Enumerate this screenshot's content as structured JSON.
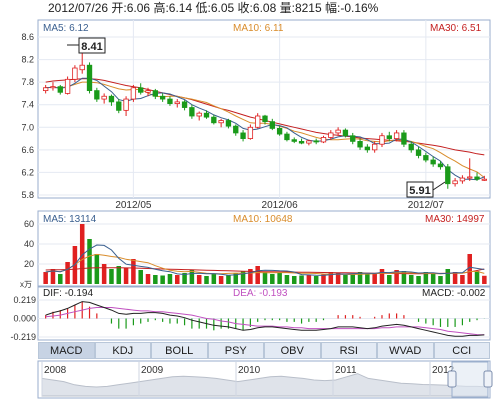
{
  "quote": {
    "date": "2012/07/26",
    "open_label": "开:",
    "open": "6.06",
    "high_label": "高:",
    "high": "6.14",
    "low_label": "低:",
    "low": "6.05",
    "close_label": "收:",
    "close": "6.08",
    "volume_label": "量:",
    "volume": "8215",
    "change_label": "幅:",
    "change": "-0.16%"
  },
  "price_panel": {
    "ma5_label": "MA5: 6.12",
    "ma10_label": "MA10: 6.11",
    "ma30_label": "MA30: 6.51",
    "max_label": "8.41",
    "min_label": "5.91"
  },
  "volume_panel": {
    "ma5_label": "MA5: 13114",
    "ma10_label": "MA10: 10648",
    "ma30_label": "MA30: 14997",
    "unit_label": "x万"
  },
  "macd_panel": {
    "dif_label": "DIF: -0.194",
    "dea_label": "DEA: -0.193",
    "macd_label": "MACD: -0.002"
  },
  "tabs": [
    "MACD",
    "KDJ",
    "BOLL",
    "PSY",
    "OBV",
    "RSI",
    "WVAD",
    "CCI"
  ],
  "active_tab": "MACD",
  "colors": {
    "up": "#e02020",
    "down": "#1a9a1a",
    "ma5": "#3a5f8f",
    "ma10": "#d98c2b",
    "ma30": "#c41f1f",
    "dif": "#222222",
    "dea": "#c050c0"
  },
  "chart_data": [
    {
      "type": "candlestick",
      "title": "",
      "ylim": [
        5.8,
        8.6
      ],
      "yticks": [
        "8.6",
        "8.2",
        "7.8",
        "7.4",
        "7.0",
        "6.6",
        "6.2",
        "5.8"
      ],
      "xticks": [
        "2012/05",
        "2012/06",
        "2012/07"
      ],
      "annotations": [
        "8.41",
        "5.91"
      ],
      "ohlc": [
        [
          7.65,
          7.75,
          7.6,
          7.7
        ],
        [
          7.7,
          7.8,
          7.65,
          7.72
        ],
        [
          7.72,
          7.75,
          7.58,
          7.62
        ],
        [
          7.6,
          7.9,
          7.58,
          7.85
        ],
        [
          7.85,
          8.1,
          7.8,
          8.05
        ],
        [
          8.02,
          8.41,
          7.95,
          8.1
        ],
        [
          8.1,
          8.15,
          7.6,
          7.65
        ],
        [
          7.65,
          7.7,
          7.45,
          7.5
        ],
        [
          7.5,
          7.6,
          7.42,
          7.55
        ],
        [
          7.55,
          7.58,
          7.38,
          7.45
        ],
        [
          7.45,
          7.5,
          7.25,
          7.3
        ],
        [
          7.3,
          7.55,
          7.2,
          7.5
        ],
        [
          7.5,
          7.75,
          7.45,
          7.7
        ],
        [
          7.7,
          7.78,
          7.58,
          7.62
        ],
        [
          7.62,
          7.7,
          7.55,
          7.65
        ],
        [
          7.65,
          7.68,
          7.5,
          7.55
        ],
        [
          7.55,
          7.6,
          7.45,
          7.5
        ],
        [
          7.5,
          7.55,
          7.38,
          7.42
        ],
        [
          7.42,
          7.5,
          7.35,
          7.45
        ],
        [
          7.45,
          7.48,
          7.3,
          7.35
        ],
        [
          7.35,
          7.4,
          7.15,
          7.2
        ],
        [
          7.2,
          7.28,
          7.12,
          7.25
        ],
        [
          7.25,
          7.3,
          7.15,
          7.18
        ],
        [
          7.18,
          7.22,
          7.05,
          7.08
        ],
        [
          7.08,
          7.15,
          7.0,
          7.12
        ],
        [
          7.12,
          7.15,
          6.98,
          7.02
        ],
        [
          7.02,
          7.05,
          6.85,
          6.9
        ],
        [
          6.9,
          6.95,
          6.75,
          6.8
        ],
        [
          6.8,
          7.05,
          6.78,
          7.0
        ],
        [
          7.0,
          7.25,
          6.98,
          7.2
        ],
        [
          7.2,
          7.22,
          7.05,
          7.1
        ],
        [
          7.1,
          7.15,
          6.95,
          6.98
        ],
        [
          6.98,
          7.02,
          6.85,
          6.88
        ],
        [
          6.88,
          6.92,
          6.75,
          6.78
        ],
        [
          6.78,
          6.82,
          6.72,
          6.75
        ],
        [
          6.75,
          6.8,
          6.7,
          6.72
        ],
        [
          6.72,
          6.78,
          6.68,
          6.76
        ],
        [
          6.76,
          6.8,
          6.7,
          6.74
        ],
        [
          6.74,
          6.85,
          6.72,
          6.82
        ],
        [
          6.82,
          6.95,
          6.78,
          6.9
        ],
        [
          6.9,
          7.0,
          6.85,
          6.95
        ],
        [
          6.95,
          6.98,
          6.82,
          6.85
        ],
        [
          6.85,
          6.9,
          6.7,
          6.75
        ],
        [
          6.75,
          6.8,
          6.6,
          6.65
        ],
        [
          6.65,
          6.7,
          6.55,
          6.6
        ],
        [
          6.6,
          6.75,
          6.55,
          6.7
        ],
        [
          6.7,
          6.9,
          6.65,
          6.85
        ],
        [
          6.85,
          6.92,
          6.75,
          6.8
        ],
        [
          6.8,
          6.95,
          6.75,
          6.9
        ],
        [
          6.9,
          6.95,
          6.65,
          6.7
        ],
        [
          6.7,
          6.75,
          6.55,
          6.6
        ],
        [
          6.6,
          6.65,
          6.45,
          6.5
        ],
        [
          6.5,
          6.55,
          6.38,
          6.42
        ],
        [
          6.42,
          6.48,
          6.3,
          6.35
        ],
        [
          6.35,
          6.4,
          6.25,
          6.3
        ],
        [
          6.3,
          6.35,
          5.91,
          6.0
        ],
        [
          6.0,
          6.1,
          5.95,
          6.05
        ],
        [
          6.05,
          6.15,
          6.0,
          6.1
        ],
        [
          6.1,
          6.45,
          6.05,
          6.12
        ],
        [
          6.12,
          6.2,
          6.05,
          6.08
        ],
        [
          6.06,
          6.14,
          6.05,
          6.08
        ]
      ],
      "ma5": [
        7.7,
        7.71,
        7.69,
        7.71,
        7.78,
        7.87,
        7.87,
        7.83,
        7.73,
        7.63,
        7.49,
        7.46,
        7.5,
        7.51,
        7.56,
        7.6,
        7.61,
        7.59,
        7.54,
        7.49,
        7.4,
        7.34,
        7.29,
        7.22,
        7.17,
        7.13,
        7.07,
        6.98,
        6.95,
        6.97,
        7.01,
        7.05,
        7.03,
        6.99,
        6.9,
        6.82,
        6.77,
        6.75,
        6.76,
        6.79,
        6.83,
        6.85,
        6.84,
        6.83,
        6.78,
        6.71,
        6.71,
        6.72,
        6.79,
        6.79,
        6.74,
        6.66,
        6.57,
        6.48,
        6.4,
        6.25,
        6.15,
        6.08,
        6.08,
        6.07,
        6.12
      ],
      "ma10": [
        7.7,
        7.71,
        7.7,
        7.72,
        7.76,
        7.8,
        7.8,
        7.79,
        7.76,
        7.72,
        7.68,
        7.66,
        7.67,
        7.67,
        7.61,
        7.55,
        7.54,
        7.55,
        7.55,
        7.52,
        7.5,
        7.47,
        7.44,
        7.38,
        7.33,
        7.27,
        7.2,
        7.14,
        7.08,
        7.07,
        7.07,
        7.05,
        7.02,
        6.98,
        6.93,
        6.9,
        6.86,
        6.82,
        6.79,
        6.78,
        6.78,
        6.79,
        6.8,
        6.79,
        6.76,
        6.75,
        6.74,
        6.76,
        6.78,
        6.77,
        6.75,
        6.71,
        6.66,
        6.62,
        6.55,
        6.47,
        6.4,
        6.32,
        6.26,
        6.21,
        6.11
      ],
      "ma30": [
        7.8,
        7.82,
        7.83,
        7.84,
        7.85,
        7.86,
        7.86,
        7.85,
        7.83,
        7.8,
        7.77,
        7.74,
        7.72,
        7.7,
        7.67,
        7.64,
        7.61,
        7.58,
        7.55,
        7.52,
        7.49,
        7.45,
        7.41,
        7.37,
        7.33,
        7.3,
        7.26,
        7.22,
        7.18,
        7.15,
        7.12,
        7.09,
        7.06,
        7.03,
        7.0,
        6.97,
        6.94,
        6.91,
        6.89,
        6.87,
        6.86,
        6.84,
        6.83,
        6.81,
        6.8,
        6.79,
        6.78,
        6.77,
        6.76,
        6.75,
        6.74,
        6.72,
        6.7,
        6.68,
        6.66,
        6.63,
        6.6,
        6.58,
        6.56,
        6.53,
        6.51
      ]
    },
    {
      "type": "bar",
      "title": "",
      "ylim": [
        0,
        60000
      ],
      "yticks": [
        "60",
        "40",
        "20"
      ],
      "volume": [
        12000,
        15000,
        10000,
        22000,
        38000,
        60000,
        45000,
        30000,
        20000,
        15000,
        18000,
        16000,
        25000,
        14000,
        10000,
        9000,
        8500,
        10000,
        9000,
        11000,
        14000,
        9000,
        8000,
        10000,
        8000,
        9000,
        11000,
        13000,
        15000,
        18000,
        12000,
        10000,
        11000,
        9000,
        8000,
        8500,
        9000,
        8000,
        9500,
        12000,
        11000,
        9000,
        10000,
        12000,
        10000,
        11000,
        15000,
        9000,
        14000,
        13000,
        9000,
        8000,
        12000,
        10000,
        8000,
        15000,
        12000,
        9000,
        30000,
        13000,
        8215
      ],
      "ma5": [
        12000,
        13000,
        12333,
        14750,
        19400,
        29000,
        35000,
        39000,
        38600,
        34000,
        25600,
        19800,
        18800,
        17600,
        16600,
        14800,
        13300,
        12300,
        10100,
        9500,
        10500,
        10700,
        10200,
        10400,
        9800,
        8800,
        9200,
        10200,
        11200,
        13200,
        13800,
        13600,
        13200,
        13000,
        12000,
        9400,
        9100,
        8700,
        8600,
        9400,
        10000,
        9900,
        10300,
        10800,
        10800,
        10600,
        11600,
        11400,
        12200,
        12400,
        12000,
        11000,
        11200,
        11200,
        10400,
        10600,
        11400,
        11200,
        16800,
        15600,
        14500
      ],
      "ma10": [
        12000,
        13000,
        12333,
        14750,
        19400,
        24500,
        28000,
        29600,
        28800,
        27500,
        26600,
        24700,
        23600,
        22400,
        21300,
        18300,
        15800,
        13800,
        12800,
        12200,
        12600,
        11600,
        10700,
        10300,
        10300,
        10600,
        10900,
        10700,
        10900,
        11500,
        11200,
        11300,
        11400,
        11400,
        11000,
        10800,
        10800,
        10500,
        10000,
        9900,
        9700,
        9600,
        9500,
        9800,
        10000,
        10200,
        10700,
        10700,
        11100,
        11200,
        11000,
        10700,
        10600,
        10400,
        10200,
        10600,
        10700,
        10700,
        12400,
        12600,
        10648
      ],
      "ma30": [
        14000,
        14200,
        14300,
        14500,
        14800,
        15500,
        16000,
        16200,
        16300,
        16300,
        16200,
        16100,
        16000,
        15800,
        15500,
        15200,
        15000,
        14800,
        14600,
        14400,
        14200,
        14000,
        13800,
        13600,
        13400,
        13200,
        13000,
        12800,
        12600,
        12400,
        12300,
        12200,
        12100,
        12000,
        11900,
        11800,
        11700,
        11600,
        11500,
        11400,
        11300,
        11200,
        11100,
        11000,
        10900,
        10800,
        10700,
        10600,
        10500,
        10400,
        10300,
        10300,
        10400,
        10500,
        10600,
        10700,
        10800,
        11000,
        12000,
        13500,
        14997
      ]
    },
    {
      "type": "line",
      "title": "",
      "ylim": [
        -0.219,
        0.219
      ],
      "yticks": [
        "0.219",
        "0.000",
        "-0.219"
      ],
      "dif": [
        0.04,
        0.07,
        0.09,
        0.12,
        0.16,
        0.2,
        0.19,
        0.16,
        0.13,
        0.1,
        0.06,
        0.05,
        0.06,
        0.06,
        0.07,
        0.07,
        0.06,
        0.04,
        0.03,
        0.01,
        -0.02,
        -0.04,
        -0.06,
        -0.08,
        -0.09,
        -0.1,
        -0.12,
        -0.14,
        -0.13,
        -0.11,
        -0.1,
        -0.1,
        -0.11,
        -0.12,
        -0.13,
        -0.14,
        -0.14,
        -0.14,
        -0.13,
        -0.12,
        -0.1,
        -0.1,
        -0.1,
        -0.11,
        -0.12,
        -0.11,
        -0.09,
        -0.08,
        -0.07,
        -0.08,
        -0.1,
        -0.12,
        -0.14,
        -0.16,
        -0.18,
        -0.2,
        -0.21,
        -0.21,
        -0.2,
        -0.2,
        -0.194
      ],
      "dea": [
        0.02,
        0.03,
        0.04,
        0.06,
        0.08,
        0.1,
        0.12,
        0.13,
        0.13,
        0.13,
        0.12,
        0.11,
        0.1,
        0.09,
        0.09,
        0.08,
        0.08,
        0.07,
        0.06,
        0.05,
        0.04,
        0.02,
        0.0,
        -0.01,
        -0.03,
        -0.04,
        -0.06,
        -0.07,
        -0.08,
        -0.09,
        -0.09,
        -0.09,
        -0.1,
        -0.1,
        -0.11,
        -0.11,
        -0.12,
        -0.12,
        -0.12,
        -0.12,
        -0.12,
        -0.12,
        -0.12,
        -0.12,
        -0.12,
        -0.12,
        -0.11,
        -0.11,
        -0.1,
        -0.1,
        -0.1,
        -0.1,
        -0.11,
        -0.12,
        -0.13,
        -0.15,
        -0.16,
        -0.17,
        -0.18,
        -0.19,
        -0.193
      ]
    },
    {
      "type": "area",
      "title": "",
      "xticks": [
        "2008",
        "2009",
        "2010",
        "2011",
        "2012"
      ],
      "values": [
        0.55,
        0.5,
        0.45,
        0.35,
        0.3,
        0.28,
        0.3,
        0.35,
        0.4,
        0.45,
        0.5,
        0.55,
        0.6,
        0.62,
        0.6,
        0.58,
        0.55,
        0.5,
        0.45,
        0.5,
        0.55,
        0.6,
        0.62,
        0.58,
        0.55,
        0.5,
        0.48,
        0.5,
        0.6,
        0.7,
        0.55,
        0.5,
        0.45,
        0.4,
        0.38,
        0.36,
        0.35,
        0.34,
        0.32,
        0.3,
        0.3,
        0.28
      ]
    }
  ]
}
